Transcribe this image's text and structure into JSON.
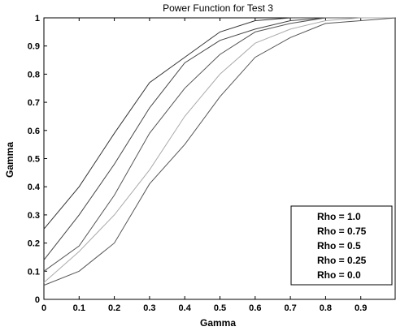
{
  "chart_data": {
    "type": "line",
    "title": "Power Function for Test 3",
    "xlabel": "Gamma",
    "ylabel": "Gamma",
    "xlim": [
      0,
      1
    ],
    "ylim": [
      0,
      1
    ],
    "x_ticks": [
      "0",
      "0.1",
      "0.2",
      "0.3",
      "0.4",
      "0.5",
      "0.6",
      "0.7",
      "0.8",
      "0.9"
    ],
    "y_ticks": [
      "0",
      "0.1",
      "0.2",
      "0.3",
      "0.4",
      "0.5",
      "0.6",
      "0.7",
      "0.8",
      "0.9",
      "1"
    ],
    "grid": false,
    "legend_position": "bottom-right",
    "x": [
      0,
      0.1,
      0.2,
      0.3,
      0.4,
      0.5,
      0.6,
      0.7,
      0.8,
      0.9,
      1.0
    ],
    "series": [
      {
        "name": "Rho = 1.0",
        "color": "#333333",
        "values": [
          0.25,
          0.4,
          0.59,
          0.77,
          0.86,
          0.95,
          0.99,
          1.0,
          1.0,
          1.0,
          1.0
        ]
      },
      {
        "name": "Rho = 0.75",
        "color": "#444444",
        "values": [
          0.14,
          0.3,
          0.48,
          0.68,
          0.84,
          0.92,
          0.96,
          0.99,
          1.0,
          1.0,
          1.0
        ]
      },
      {
        "name": "Rho = 0.5",
        "color": "#555555",
        "values": [
          0.1,
          0.19,
          0.37,
          0.59,
          0.75,
          0.87,
          0.95,
          0.98,
          1.0,
          1.0,
          1.0
        ]
      },
      {
        "name": "Rho = 0.25",
        "color": "#aaaaaa",
        "values": [
          0.06,
          0.17,
          0.3,
          0.46,
          0.65,
          0.8,
          0.91,
          0.96,
          0.99,
          1.0,
          1.0
        ]
      },
      {
        "name": "Rho = 0.0",
        "color": "#555555",
        "values": [
          0.05,
          0.1,
          0.2,
          0.41,
          0.55,
          0.72,
          0.86,
          0.93,
          0.98,
          0.99,
          1.0
        ]
      }
    ]
  }
}
